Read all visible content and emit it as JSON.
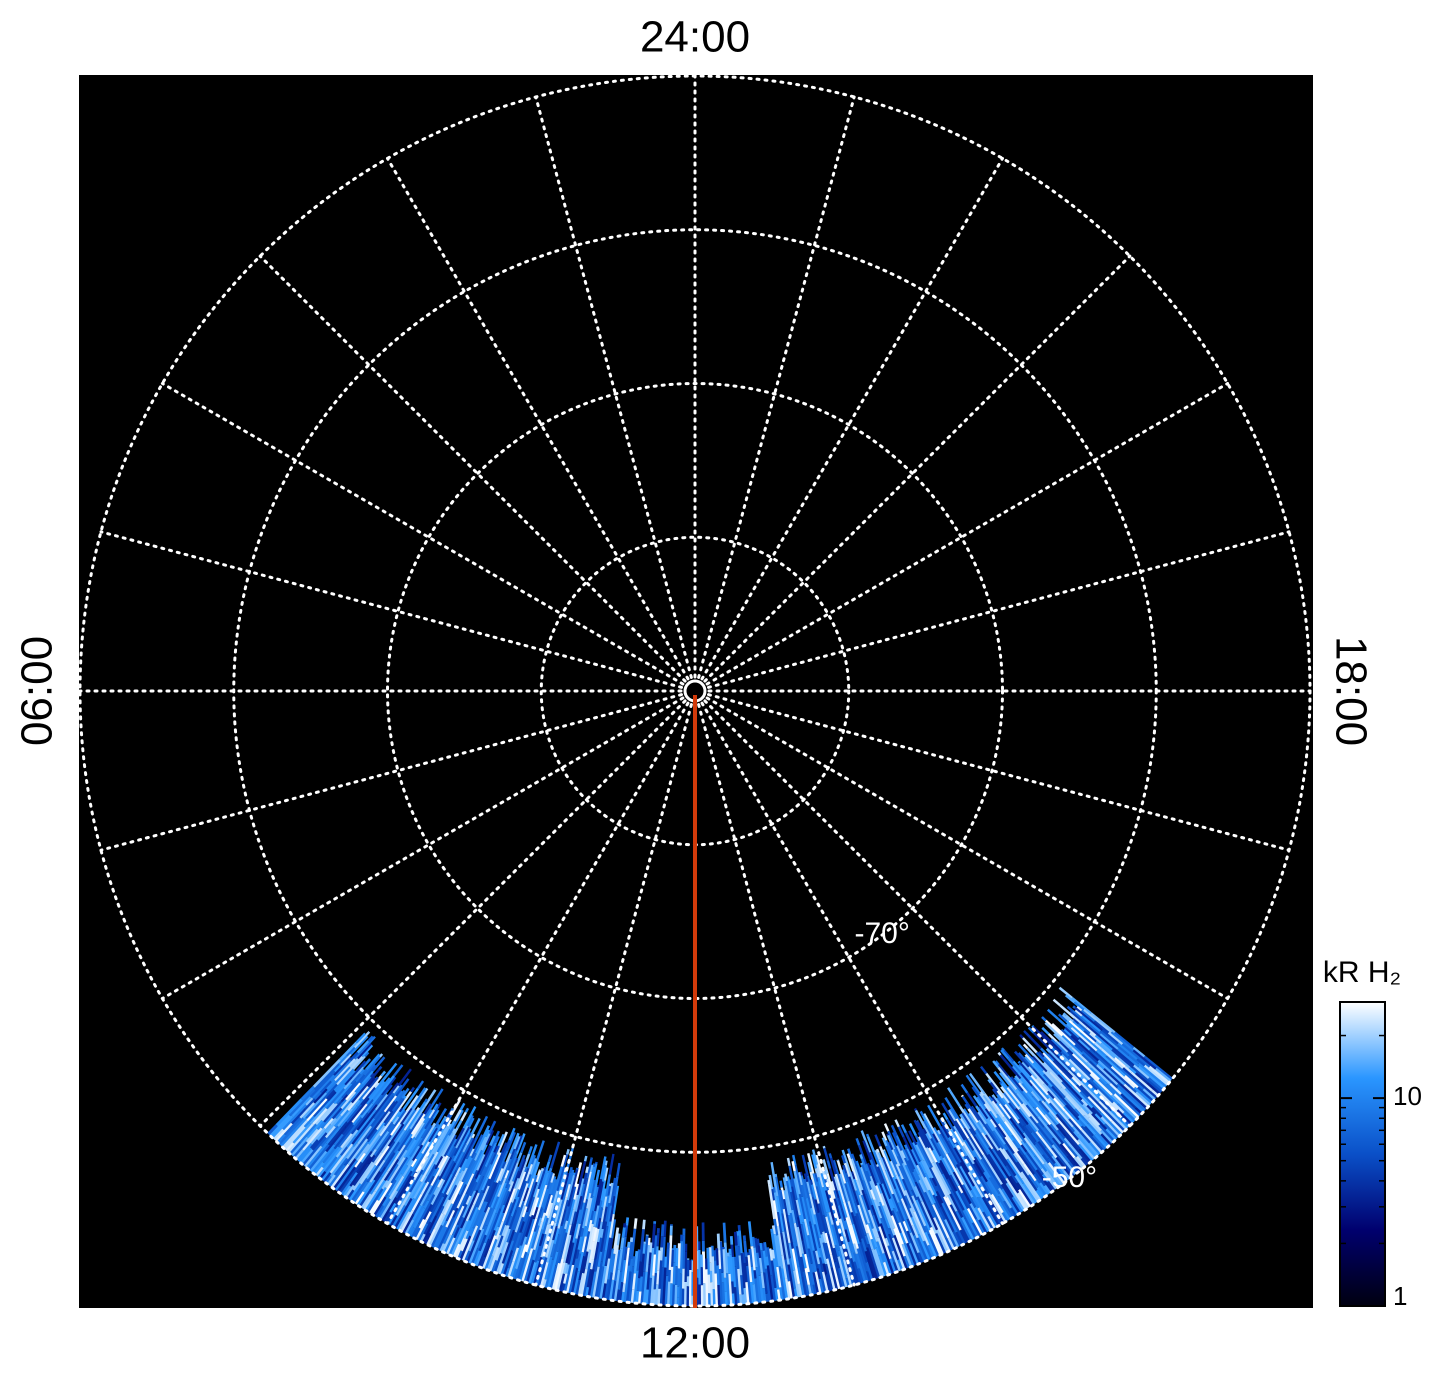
{
  "chart_data": {
    "type": "polar",
    "lt_labels": [
      "24:00",
      "06:00",
      "12:00",
      "18:00"
    ],
    "lt_grid_hours": 24,
    "rlim": [
      -90,
      -50
    ],
    "lat_grid": [
      -80,
      -70,
      -60,
      -50
    ],
    "lat_labels": [
      {
        "value": -70,
        "label": "-70°"
      },
      {
        "value": -50,
        "label": "-50°"
      }
    ],
    "grid": true,
    "colorbar": {
      "title": "kR H₂",
      "log": true,
      "clim": [
        1,
        29
      ],
      "ticks": [
        1,
        10
      ],
      "colormap": [
        "#000010",
        "#00006e",
        "#0a50c8",
        "#2a96ff",
        "#ffffff"
      ]
    },
    "meridian_color": "#d23a0a"
  }
}
